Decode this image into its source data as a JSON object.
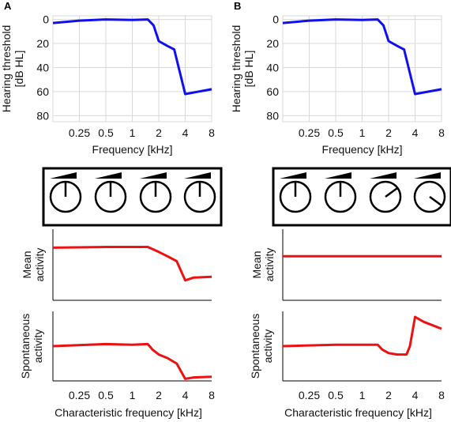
{
  "panels": [
    {
      "letter": "A",
      "knobs": [
        0,
        0,
        0,
        0
      ],
      "audiogram_ylabel_line1": "Hearing threshold",
      "audiogram_ylabel_line2": "[dB HL]",
      "audiogram_xlabel": "Frequency [kHz]",
      "mean_ylabel_line1": "Mean",
      "mean_ylabel_line2": "activity",
      "spont_ylabel_line1": "Spontaneous",
      "spont_ylabel_line2": "activity",
      "bottom_xlabel": "Characteristic frequency [kHz]"
    },
    {
      "letter": "B",
      "knobs": [
        0,
        0,
        0.3,
        0.7
      ],
      "audiogram_ylabel_line1": "Hearing threshold",
      "audiogram_ylabel_line2": "[dB HL]",
      "audiogram_xlabel": "Frequency [kHz]",
      "mean_ylabel_line1": "Mean",
      "mean_ylabel_line2": "activity",
      "spont_ylabel_line1": "Spontaneous",
      "spont_ylabel_line2": "activity",
      "bottom_xlabel": "Characteristic frequency [kHz]"
    }
  ],
  "colors": {
    "audiogram": "#1010ee",
    "activity": "#ee1111",
    "grid": "#d9d9d9"
  },
  "chart_data": [
    {
      "panel": "A",
      "type": "line",
      "xscale": "log",
      "xlabel": "Frequency [kHz]",
      "ylabel": "Hearing threshold [dB HL]",
      "xticks": [
        "0.25",
        "0.5",
        "1",
        "2",
        "4",
        "8"
      ],
      "yticks": [
        "0",
        "20",
        "40",
        "60",
        "80"
      ],
      "ylim": [
        85,
        -3
      ],
      "xlim": [
        0.125,
        8.6
      ],
      "grid": true,
      "series": [
        {
          "x": [
            0.125,
            0.25,
            0.5,
            1,
            1.5,
            1.75,
            2,
            2.5,
            3,
            4,
            8
          ],
          "y": [
            3,
            1,
            0,
            0.5,
            0,
            5,
            18,
            22,
            25,
            62,
            58
          ]
        }
      ]
    },
    {
      "panel": "A",
      "type": "line",
      "xscale": "log",
      "ylabel": "Mean activity",
      "yrange": [
        0,
        1
      ],
      "series": [
        {
          "x": [
            0.125,
            0.5,
            1.5,
            2,
            2.5,
            3.2,
            4,
            5,
            8
          ],
          "y": [
            0.74,
            0.75,
            0.75,
            0.68,
            0.62,
            0.55,
            0.28,
            0.32,
            0.33
          ]
        }
      ]
    },
    {
      "panel": "A",
      "type": "line",
      "xscale": "log",
      "ylabel": "Spontaneous activity",
      "xlabel": "Characteristic frequency [kHz]",
      "xticks": [
        "0.25",
        "0.5",
        "1",
        "2",
        "4",
        "8"
      ],
      "yrange": [
        0,
        1
      ],
      "series": [
        {
          "x": [
            0.125,
            0.5,
            1,
            1.5,
            1.7,
            2,
            2.5,
            3.2,
            4,
            5,
            8
          ],
          "y": [
            0.5,
            0.53,
            0.52,
            0.53,
            0.45,
            0.38,
            0.33,
            0.25,
            0.03,
            0.05,
            0.06
          ]
        }
      ]
    },
    {
      "panel": "B",
      "type": "line",
      "xscale": "log",
      "xlabel": "Frequency [kHz]",
      "ylabel": "Hearing threshold [dB HL]",
      "xticks": [
        "0.25",
        "0.5",
        "1",
        "2",
        "4",
        "8"
      ],
      "yticks": [
        "0",
        "20",
        "40",
        "60",
        "80"
      ],
      "ylim": [
        85,
        -3
      ],
      "xlim": [
        0.125,
        8.6
      ],
      "grid": true,
      "series": [
        {
          "x": [
            0.125,
            0.25,
            0.5,
            1,
            1.5,
            1.75,
            2,
            2.5,
            3,
            4,
            8
          ],
          "y": [
            3,
            1,
            0,
            0.5,
            0,
            5,
            18,
            22,
            25,
            62,
            58
          ]
        }
      ]
    },
    {
      "panel": "B",
      "type": "line",
      "xscale": "log",
      "ylabel": "Mean activity",
      "yrange": [
        0,
        1
      ],
      "series": [
        {
          "x": [
            0.125,
            8
          ],
          "y": [
            0.62,
            0.62
          ]
        }
      ]
    },
    {
      "panel": "B",
      "type": "line",
      "xscale": "log",
      "ylabel": "Spontaneous activity",
      "xlabel": "Characteristic frequency [kHz]",
      "xticks": [
        "0.25",
        "0.5",
        "1",
        "2",
        "4",
        "8"
      ],
      "yrange": [
        0,
        1
      ],
      "series": [
        {
          "x": [
            0.125,
            0.5,
            1,
            1.5,
            1.7,
            2,
            2.5,
            3.2,
            3.5,
            4,
            5,
            8
          ],
          "y": [
            0.5,
            0.52,
            0.52,
            0.52,
            0.45,
            0.4,
            0.38,
            0.38,
            0.5,
            0.92,
            0.85,
            0.75
          ]
        }
      ]
    }
  ]
}
